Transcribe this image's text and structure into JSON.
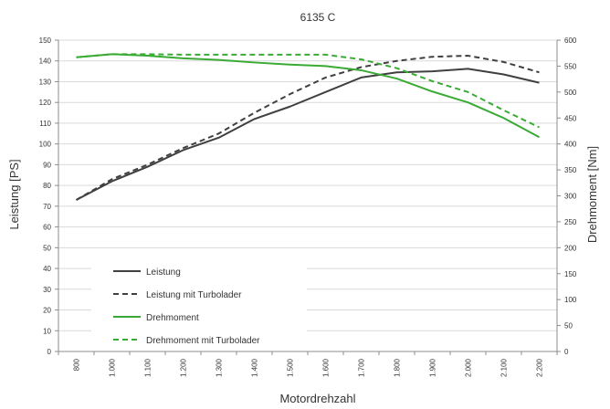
{
  "chart_data": {
    "type": "line",
    "title": "6135 C",
    "xlabel": "Motordrehzahl",
    "ylabel": "Leistung [PS]",
    "y2label": "Drehmoment [Nm]",
    "categories": [
      "800",
      "1.000",
      "1.100",
      "1.200",
      "1.300",
      "1.400",
      "1.500",
      "1.600",
      "1.700",
      "1.800",
      "1.900",
      "2.000",
      "2.100",
      "2.200"
    ],
    "ylim": [
      0,
      150
    ],
    "y2lim": [
      0,
      600
    ],
    "yticks": [
      "0",
      "10",
      "20",
      "30",
      "40",
      "50",
      "60",
      "70",
      "80",
      "90",
      "100",
      "110",
      "120",
      "130",
      "140",
      "150"
    ],
    "y2ticks": [
      "0",
      "50",
      "100",
      "150",
      "200",
      "250",
      "300",
      "350",
      "400",
      "450",
      "500",
      "550",
      "600"
    ],
    "grid": true,
    "legend": "lower-left",
    "series": [
      {
        "name": "Leistung",
        "axis": "left",
        "color": "#404040",
        "dash": false,
        "values": [
          73,
          82,
          89,
          97,
          103,
          112,
          118,
          125,
          132,
          134.5,
          135,
          136.2,
          133.5,
          129.5
        ]
      },
      {
        "name": "Leistung mit Turbolader",
        "axis": "left",
        "color": "#404040",
        "dash": true,
        "values": [
          73,
          83,
          90,
          98,
          105,
          115,
          124,
          132,
          137,
          140,
          142,
          142.5,
          139.5,
          134.5
        ]
      },
      {
        "name": "Drehmoment",
        "axis": "right",
        "color": "#3aaa35",
        "dash": false,
        "values": [
          567,
          573,
          570,
          565,
          562,
          557,
          553,
          550,
          542,
          526,
          501,
          480,
          450,
          413
        ]
      },
      {
        "name": "Drehmoment mit Turbolader",
        "axis": "right",
        "color": "#3aaa35",
        "dash": true,
        "values": [
          567,
          573,
          573,
          572,
          572,
          572,
          572,
          572,
          563,
          546,
          521,
          500,
          465,
          432
        ]
      }
    ]
  }
}
